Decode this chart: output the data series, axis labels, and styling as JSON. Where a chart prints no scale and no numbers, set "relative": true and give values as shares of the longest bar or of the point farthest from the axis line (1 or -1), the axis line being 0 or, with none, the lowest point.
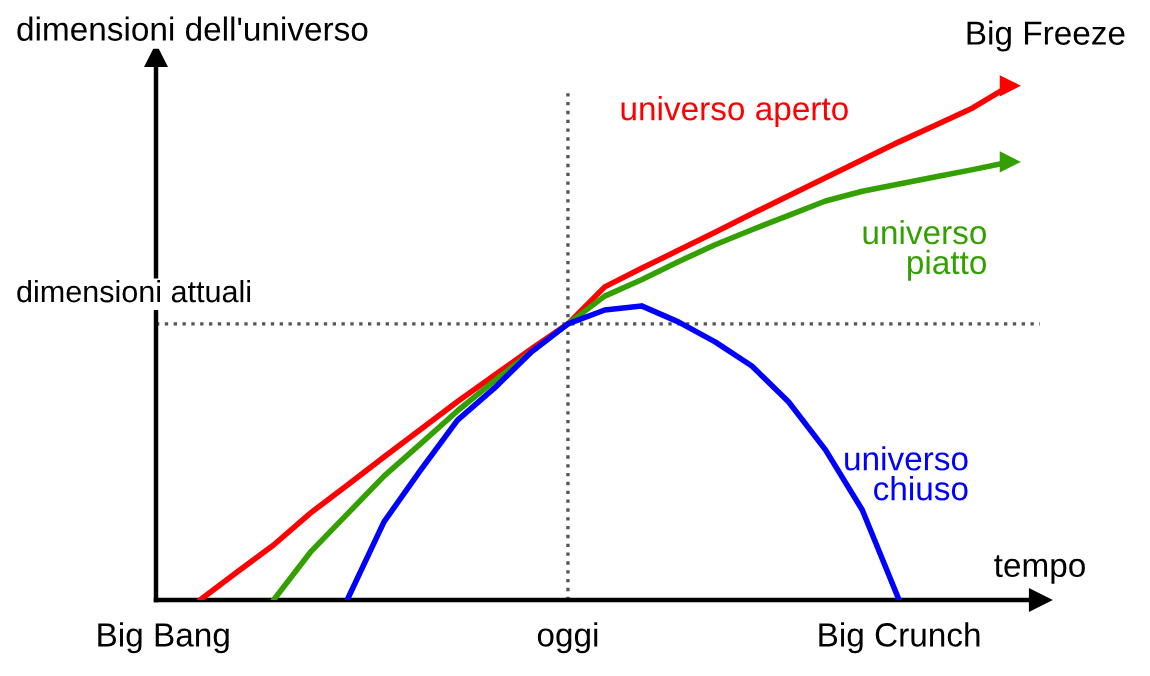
{
  "chart_data": {
    "type": "line",
    "relative": true,
    "ylabel": "dimensioni dell'universo",
    "xlabel": "tempo",
    "tick_labels": "x",
    "categories": [
      "Big Bang",
      null,
      null,
      null,
      null,
      null,
      null,
      null,
      null,
      null,
      null,
      "oggi",
      null,
      null,
      null,
      null,
      null,
      null,
      null,
      null,
      "Big Crunch",
      null,
      null,
      null
    ],
    "series": [
      {
        "name": "universo aperto",
        "color": "#ff0000",
        "values": [
          null,
          0,
          0.054,
          0.107,
          0.169,
          0.223,
          0.278,
          0.332,
          0.386,
          0.437,
          0.488,
          0.537,
          0.609,
          0.645,
          0.68,
          0.715,
          0.751,
          0.786,
          0.821,
          0.856,
          0.891,
          0.924,
          0.957,
          1
        ]
      },
      {
        "name": "universo\npiatto",
        "color": "#33a000",
        "values": [
          null,
          null,
          null,
          0,
          0.093,
          0.167,
          0.241,
          0.304,
          0.368,
          0.426,
          0.482,
          0.537,
          0.591,
          0.623,
          0.658,
          0.691,
          0.72,
          0.748,
          0.776,
          0.795,
          0.809,
          0.823,
          0.837,
          0.852
        ]
      },
      {
        "name": "universo\nchiuso",
        "color": "#0000ff",
        "values": [
          null,
          null,
          null,
          null,
          null,
          0,
          0.152,
          0.253,
          0.35,
          0.412,
          0.482,
          0.537,
          0.564,
          0.572,
          0.541,
          0.502,
          0.455,
          0.385,
          0.292,
          0.175,
          0,
          null,
          null,
          null
        ]
      }
    ],
    "ref_lines": [
      {
        "axis": "y",
        "value": 0.537,
        "label": "dimensioni attuali",
        "line_style": "dotted",
        "color": "#555555"
      },
      {
        "axis": "x",
        "value": "oggi",
        "line_style": "dotted",
        "color": "#555555"
      }
    ],
    "annotations": [
      "Big Freeze"
    ]
  }
}
